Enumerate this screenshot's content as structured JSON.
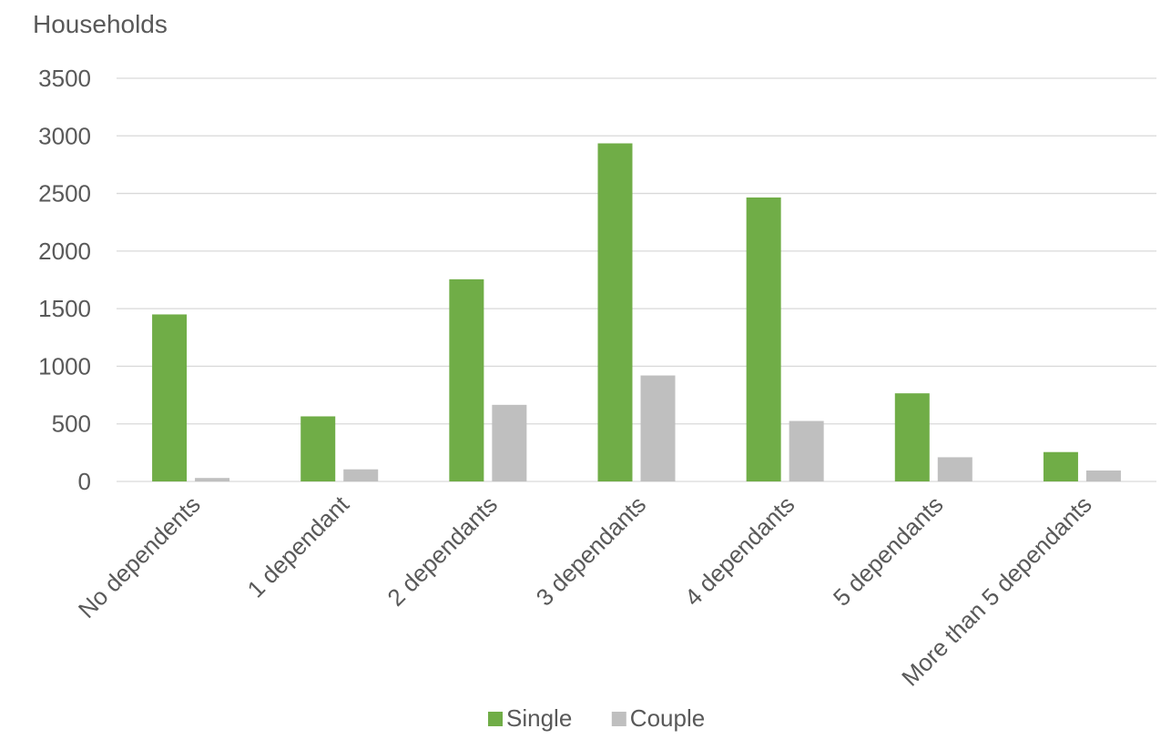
{
  "chart_data": {
    "type": "bar",
    "title": "",
    "xlabel": "",
    "ylabel": "Households",
    "ylim": [
      0,
      3500
    ],
    "yticks": [
      0,
      500,
      1000,
      1500,
      2000,
      2500,
      3000,
      3500
    ],
    "grid": true,
    "legend_position": "bottom",
    "categories": [
      "No dependents",
      "1 dependant",
      "2 dependants",
      "3 dependants",
      "4 dependants",
      "5 dependants",
      "More than 5 dependants"
    ],
    "series": [
      {
        "name": "Single",
        "color": "#70AD47",
        "values": [
          1450,
          565,
          1755,
          2935,
          2465,
          765,
          255
        ]
      },
      {
        "name": "Couple",
        "color": "#BFBFBF",
        "values": [
          30,
          105,
          665,
          920,
          525,
          210,
          95
        ]
      }
    ],
    "gridline_color": "#D9D9D9"
  }
}
